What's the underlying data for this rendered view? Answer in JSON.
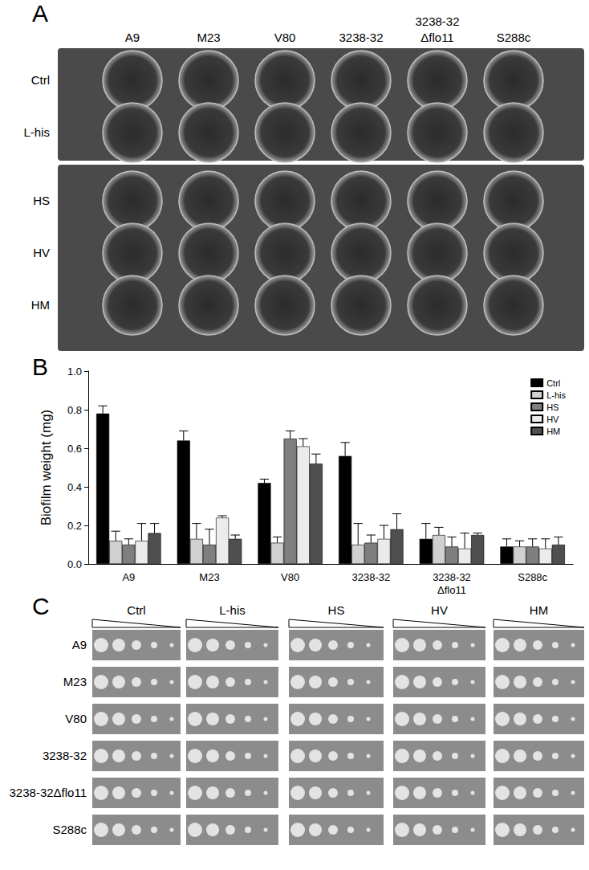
{
  "panel_labels": [
    "A",
    "B",
    "C"
  ],
  "plate": {
    "strains": [
      "A9",
      "M23",
      "V80",
      "3238-32",
      "3238-32\nΔflo11",
      "S288c"
    ],
    "conditions": [
      "Ctrl",
      "L-his",
      "HS",
      "HV",
      "HM"
    ]
  },
  "chart_data": {
    "type": "bar",
    "categories": [
      "A9",
      "M23",
      "V80",
      "3238-32",
      "3238-32\nΔflo11",
      "S288c"
    ],
    "y_label": "Biofilm weight (mg)",
    "ylim": [
      0,
      1.0
    ],
    "yticks": [
      {
        "value": 0,
        "label": "0.0"
      },
      0.2,
      0.4,
      0.6,
      0.8,
      {
        "value": 1,
        "label": "1.0"
      }
    ],
    "grid": false,
    "legend": "upper right",
    "series": [
      {
        "name": "Ctrl",
        "color": "#000000",
        "values": [
          0.78,
          0.64,
          0.42,
          0.56,
          0.13,
          0.09
        ],
        "errors": [
          0.04,
          0.05,
          0.02,
          0.07,
          0.08,
          0.04
        ]
      },
      {
        "name": "L-his",
        "color": "#d0d0d0",
        "values": [
          0.12,
          0.13,
          0.11,
          0.1,
          0.15,
          0.09
        ],
        "errors": [
          0.05,
          0.08,
          0.03,
          0.11,
          0.04,
          0.03
        ]
      },
      {
        "name": "HS",
        "color": "#7f7f7f",
        "values": [
          0.1,
          0.1,
          0.65,
          0.11,
          0.09,
          0.09
        ],
        "errors": [
          0.03,
          0.08,
          0.04,
          0.04,
          0.05,
          0.04
        ]
      },
      {
        "name": "HV",
        "color": "#ebebeb",
        "values": [
          0.12,
          0.24,
          0.61,
          0.13,
          0.08,
          0.08
        ],
        "errors": [
          0.09,
          0.01,
          0.04,
          0.07,
          0.08,
          0.05
        ]
      },
      {
        "name": "HM",
        "color": "#4f4f4f",
        "values": [
          0.16,
          0.13,
          0.52,
          0.18,
          0.15,
          0.1
        ],
        "errors": [
          0.05,
          0.02,
          0.05,
          0.08,
          0.01,
          0.04
        ]
      }
    ]
  },
  "spot_assay": {
    "strains": [
      "A9",
      "M23",
      "V80",
      "3238-32",
      "3238-32Δflo11",
      "S288c"
    ],
    "conditions": [
      "Ctrl",
      "L-his",
      "HS",
      "HV",
      "HM"
    ]
  }
}
